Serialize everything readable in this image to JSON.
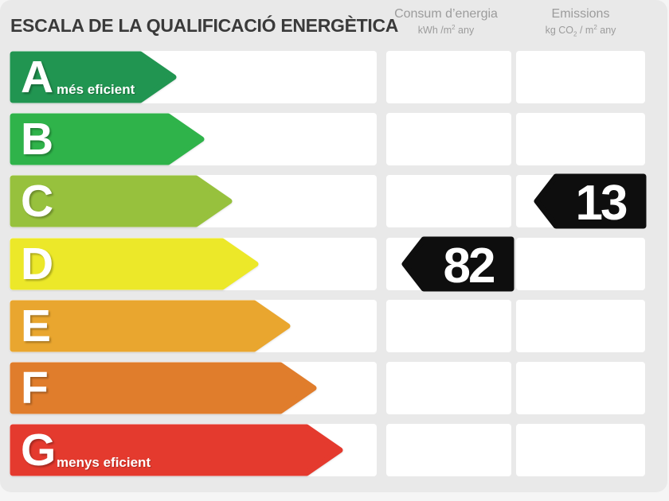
{
  "title": "ESCALA DE LA QUALIFICACIÓ ENERGÈTICA",
  "columns": {
    "consumption": {
      "title": "Consum d’energia",
      "unit_pre": "kWh /m",
      "unit_sup": "2",
      "unit_post": " any"
    },
    "emissions": {
      "title": "Emissions",
      "unit_pre": "kg CO",
      "unit_sub": "2",
      "unit_mid": " / m",
      "unit_sup": "2",
      "unit_post": " any"
    }
  },
  "scale": [
    {
      "letter": "A",
      "label": "més eficient",
      "color": "#219551",
      "tip": 222
    },
    {
      "letter": "B",
      "color": "#2fb34a",
      "tip": 257
    },
    {
      "letter": "C",
      "color": "#97c13d",
      "tip": 292
    },
    {
      "letter": "D",
      "color": "#ece829",
      "tip": 325
    },
    {
      "letter": "E",
      "color": "#e9a62f",
      "tip": 365
    },
    {
      "letter": "F",
      "color": "#e07d2c",
      "tip": 398
    },
    {
      "letter": "G",
      "label": "menys eficient",
      "color": "#e43a2e",
      "tip": 431
    }
  ],
  "values": {
    "consumption": {
      "value": "82",
      "rating": "D"
    },
    "emissions": {
      "value": "13",
      "rating": "C"
    }
  },
  "colors": {
    "panel": "#e9e9e9",
    "cell": "#ffffff",
    "tag": "#0e0e0e",
    "tag_text": "#ffffff",
    "header_text": "#9c9c9c",
    "title_text": "#3a3a3a"
  },
  "chart_data": {
    "type": "bar",
    "title": "ESCALA DE LA QUALIFICACIÓ ENERGÈTICA",
    "categories": [
      "A",
      "B",
      "C",
      "D",
      "E",
      "F",
      "G"
    ],
    "category_annotations": {
      "A": "més eficient",
      "G": "menys eficient"
    },
    "bar_colors": [
      "#219551",
      "#2fb34a",
      "#97c13d",
      "#ece829",
      "#e9a62f",
      "#e07d2c",
      "#e43a2e"
    ],
    "bar_relative_lengths": [
      222,
      257,
      292,
      325,
      365,
      398,
      431
    ],
    "series": [
      {
        "name": "Consum d’energia (kWh/m2 any)",
        "rating": "D",
        "value": 82
      },
      {
        "name": "Emissions (kg CO2/m2 any)",
        "rating": "C",
        "value": 13
      }
    ],
    "grid": false,
    "legend_position": "top"
  }
}
